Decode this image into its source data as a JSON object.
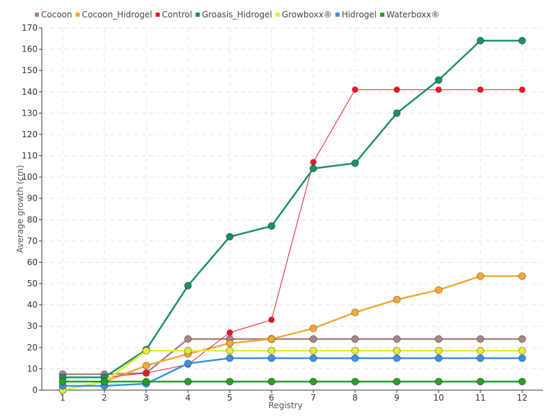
{
  "chart_data": {
    "type": "line",
    "xlabel": "Registry",
    "ylabel": "Average growth (cm)",
    "ylim": [
      0,
      170
    ],
    "y_ticks": [
      0,
      10,
      20,
      30,
      40,
      50,
      60,
      70,
      80,
      90,
      100,
      110,
      120,
      130,
      140,
      150,
      160,
      170
    ],
    "categories": [
      "1",
      "2",
      "3",
      "4",
      "5",
      "6",
      "7",
      "8",
      "9",
      "10",
      "11",
      "12"
    ],
    "grid": true,
    "legend_position": "top-left",
    "series": [
      {
        "name": "Cocoon",
        "color": "#a88585",
        "values": [
          7.5,
          7.5,
          8,
          24,
          24,
          24,
          24,
          24,
          24,
          24,
          24,
          24
        ]
      },
      {
        "name": "Cocoon_Hidrogel",
        "color": "#f5a833",
        "values": [
          0,
          4,
          11.5,
          17,
          22,
          24,
          29,
          36.5,
          42.5,
          47,
          53.5,
          53.5
        ]
      },
      {
        "name": "Control",
        "color": "#e01a2a",
        "values": [
          6,
          6,
          8,
          12,
          27,
          33,
          107,
          141,
          141,
          141,
          141,
          141
        ]
      },
      {
        "name": "Groasis_Hidrogel",
        "color": "#1b8f6a",
        "values": [
          6,
          6,
          19,
          49,
          72,
          77,
          104,
          106.5,
          130,
          145.5,
          164,
          164
        ]
      },
      {
        "name": "Growboxx®",
        "color": "#e4ee33",
        "values": [
          0,
          4,
          18.5,
          18.5,
          18.5,
          18.5,
          18.5,
          18.5,
          18.5,
          18.5,
          18.5,
          18.5
        ]
      },
      {
        "name": "Hidrogel",
        "color": "#3b8fe6",
        "values": [
          2,
          2,
          3,
          12.5,
          15,
          15,
          15,
          15,
          15,
          15,
          15,
          15
        ]
      },
      {
        "name": "Waterboxx®",
        "color": "#26a026",
        "values": [
          4,
          4,
          4,
          4,
          4,
          4,
          4,
          4,
          4,
          4,
          4,
          4
        ]
      }
    ]
  }
}
